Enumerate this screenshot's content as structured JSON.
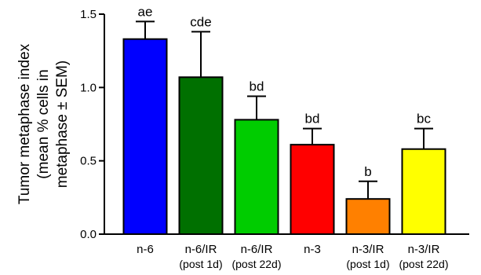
{
  "chart_data": {
    "type": "bar",
    "ylabel_lines": [
      "Tumor metaphase index",
      "(mean % cells in",
      "metaphase ± SEM)"
    ],
    "ylim": [
      0,
      1.5
    ],
    "yticks": [
      {
        "value": 0.0,
        "label": "0.0"
      },
      {
        "value": 0.5,
        "label": "0.5"
      },
      {
        "value": 1.0,
        "label": "1.0"
      },
      {
        "value": 1.5,
        "label": "1.5"
      }
    ],
    "categories": [
      {
        "line1": "n-6",
        "line2": ""
      },
      {
        "line1": "n-6/IR",
        "line2": "(post 1d)"
      },
      {
        "line1": "n-6/IR",
        "line2": "(post 22d)"
      },
      {
        "line1": "n-3",
        "line2": ""
      },
      {
        "line1": "n-3/IR",
        "line2": "(post 1d)"
      },
      {
        "line1": "n-3/IR",
        "line2": "(post 22d)"
      }
    ],
    "values": [
      1.33,
      1.07,
      0.78,
      0.61,
      0.24,
      0.58
    ],
    "errors": [
      0.12,
      0.31,
      0.16,
      0.11,
      0.12,
      0.14
    ],
    "significance": [
      "ae",
      "cde",
      "bd",
      "bd",
      "b",
      "bc"
    ],
    "colors": [
      "#0000ff",
      "#007000",
      "#00cc00",
      "#ff0000",
      "#ff8000",
      "#ffff00"
    ],
    "grid": false,
    "legend": "none"
  }
}
